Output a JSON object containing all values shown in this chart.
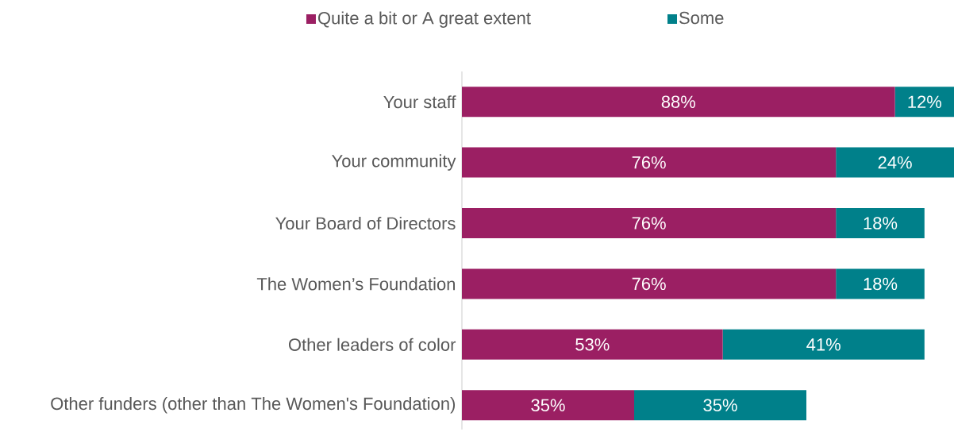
{
  "chart_data": {
    "type": "bar",
    "orientation": "horizontal",
    "stacked": true,
    "legend": "top",
    "categories": [
      "Your staff",
      "Your community",
      "Your Board of Directors",
      "The Women’s Foundation",
      "Other leaders of color",
      "Other funders (other than The Women's Foundation)"
    ],
    "series": [
      {
        "name": "Quite a bit or A great extent",
        "color": "#9b1f63",
        "values": [
          88,
          76,
          76,
          76,
          53,
          35
        ],
        "value_labels": [
          "88%",
          "76%",
          "76%",
          "76%",
          "53%",
          "35%"
        ]
      },
      {
        "name": "Some",
        "color": "#00808a",
        "values": [
          12,
          24,
          18,
          18,
          41,
          35
        ],
        "value_labels": [
          "12%",
          "24%",
          "18%",
          "18%",
          "41%",
          "35%"
        ]
      }
    ]
  }
}
